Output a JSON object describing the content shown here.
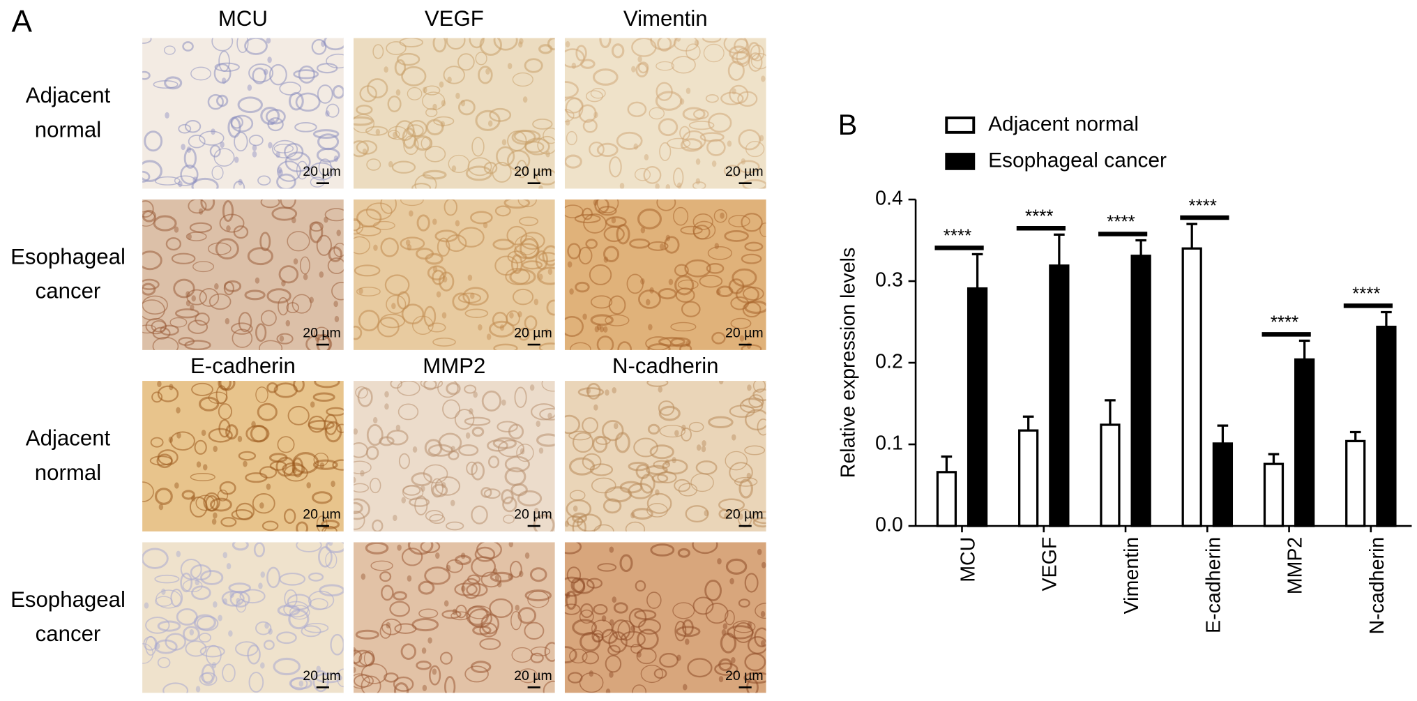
{
  "panel_labels": [
    "A",
    "B"
  ],
  "micrographs": {
    "column_labels": [
      [
        "MCU",
        "VEGF",
        "Vimentin"
      ],
      [
        "E-cadherin",
        "MMP2",
        "N-cadherin"
      ]
    ],
    "row_labels": [
      "Adjacent normal",
      "Esophageal cancer"
    ],
    "scale_bar": "20 µm"
  },
  "chart_data": {
    "type": "bar",
    "ylabel": "Relative expression levels",
    "categories": [
      "MCU",
      "VEGF",
      "Vimentin",
      "E-cadherin",
      "MMP2",
      "N-cadherin"
    ],
    "series": [
      {
        "name": "Adjacent normal",
        "color": "#ffffff",
        "values": [
          0.066,
          0.117,
          0.124,
          0.34,
          0.076,
          0.104
        ],
        "errors": [
          0.019,
          0.017,
          0.03,
          0.03,
          0.012,
          0.011
        ]
      },
      {
        "name": "Esophageal cancer",
        "color": "#000000",
        "values": [
          0.291,
          0.319,
          0.331,
          0.101,
          0.204,
          0.244
        ],
        "errors": [
          0.042,
          0.038,
          0.019,
          0.022,
          0.023,
          0.018
        ]
      }
    ],
    "significance": [
      "****",
      "****",
      "****",
      "****",
      "****",
      "****"
    ],
    "ylim": [
      0,
      0.4
    ],
    "yticks": [
      {
        "value": 0,
        "label": "0.0"
      },
      0.1,
      0.2,
      0.3,
      0.4
    ],
    "legend": "top"
  }
}
